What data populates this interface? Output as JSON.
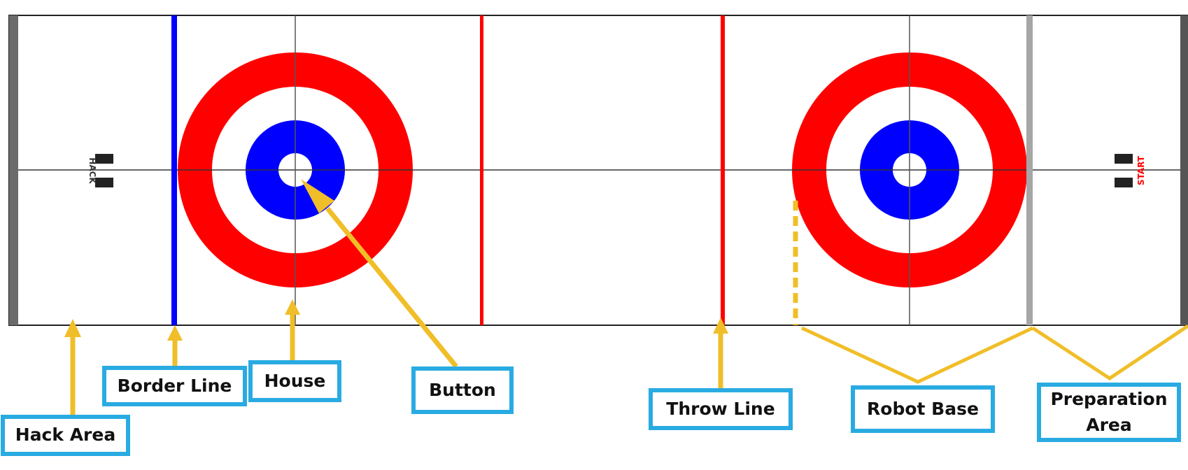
{
  "labels": {
    "hack_area": "Hack Area",
    "border_line": "Border Line",
    "house": "House",
    "button": "Button",
    "throw_line": "Throw Line",
    "robot_base": "Robot Base",
    "preparation_area": "Preparation\nArea"
  },
  "hack_text_left": "HACK",
  "hack_text_right": "START",
  "colors": {
    "ring_red": "#ff0000",
    "ring_blue": "#0000ff",
    "border_line": "#0000ff",
    "throw_lines": "#ff0000",
    "annotation": "#f0be28",
    "label_border": "#29abe2"
  }
}
